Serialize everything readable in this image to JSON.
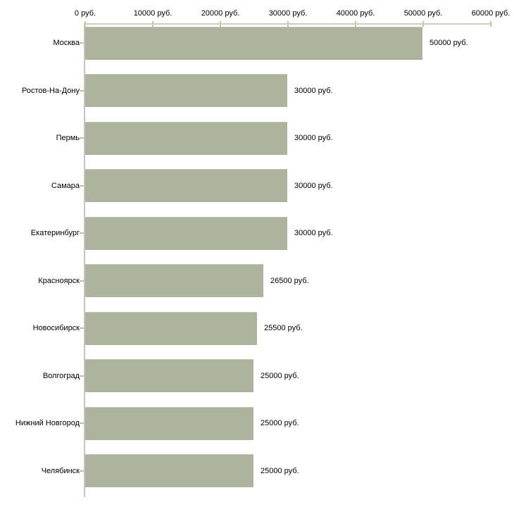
{
  "chart_data": {
    "type": "bar",
    "orientation": "horizontal",
    "title": "",
    "categories": [
      "Москва",
      "Ростов-На-Дону",
      "Пермь",
      "Самара",
      "Екатеринбург",
      "Красноярск",
      "Новосибирск",
      "Волгоград",
      "Нижний Новгород",
      "Челябинск"
    ],
    "values": [
      50000,
      30000,
      30000,
      30000,
      30000,
      26500,
      25500,
      25000,
      25000,
      25000
    ],
    "value_labels": [
      "50000 руб.",
      "30000 руб.",
      "30000 руб.",
      "30000 руб.",
      "30000 руб.",
      "26500 руб.",
      "25500 руб.",
      "25000 руб.",
      "25000 руб.",
      "25000 руб."
    ],
    "unit": "руб.",
    "x_axis": {
      "position": "top",
      "range": [
        0,
        60000
      ],
      "ticks": [
        0,
        10000,
        20000,
        30000,
        40000,
        50000,
        60000
      ],
      "tick_labels": [
        "0 руб.",
        "10000 руб.",
        "20000 руб.",
        "30000 руб.",
        "40000 руб.",
        "50000 руб.",
        "60000 руб."
      ]
    },
    "grid": "off",
    "legend": "none",
    "colors": {
      "bar": "#adb39d",
      "bar_top_edge": "#c3c8b3",
      "x_axis_line": "#ccccc0",
      "y_axis_line": "#c4c4c4",
      "tick_mark": "#c9c08b",
      "text": "#000000",
      "background": "#ffffff"
    }
  }
}
